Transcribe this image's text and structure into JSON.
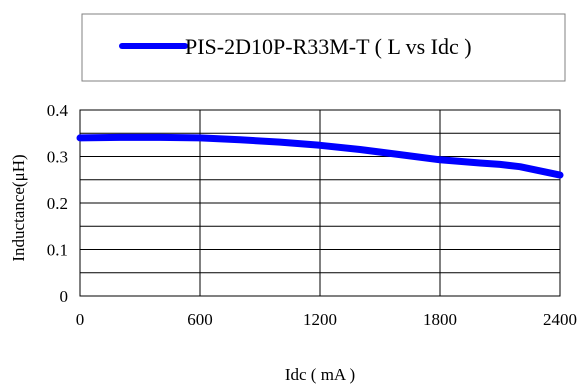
{
  "chart_data": {
    "type": "line",
    "legend_label": "PIS-2D10P-R33M-T ( L vs Idc )",
    "xlabel": "Idc ( mA )",
    "ylabel": "Inductance(μH)",
    "xlim": [
      0,
      2400
    ],
    "ylim": [
      0,
      0.4
    ],
    "xticks": [
      0,
      600,
      1200,
      1800,
      2400
    ],
    "yticks": [
      0,
      0.1,
      0.2,
      0.3,
      0.4
    ],
    "xtick_labels": [
      "0",
      "600",
      "1200",
      "1800",
      "2400"
    ],
    "ytick_labels": [
      "0",
      "0.1",
      "0.2",
      "0.3",
      "0.4"
    ],
    "legend_position": "top",
    "grid": true,
    "series_color": "#0000ff",
    "series": [
      {
        "name": "PIS-2D10P-R33M-T ( L vs Idc )",
        "x": [
          0,
          200,
          400,
          600,
          800,
          1000,
          1200,
          1400,
          1600,
          1800,
          2000,
          2100,
          2200,
          2400
        ],
        "y": [
          0.34,
          0.341,
          0.341,
          0.34,
          0.336,
          0.331,
          0.324,
          0.315,
          0.304,
          0.293,
          0.286,
          0.283,
          0.278,
          0.26
        ]
      }
    ]
  }
}
